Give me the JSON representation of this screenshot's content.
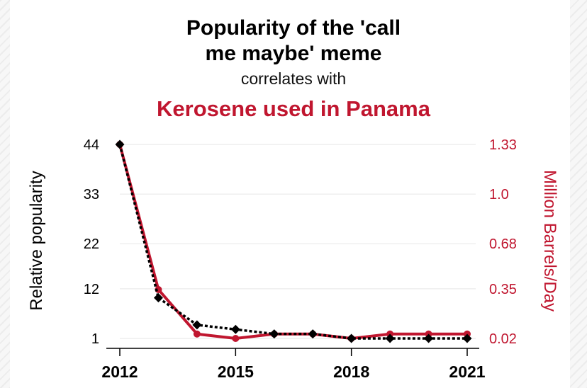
{
  "header": {
    "title_line1": "Popularity of the 'call",
    "title_line2": "me maybe' meme",
    "subtitle": "correlates with",
    "title2": "Kerosene used in Panama"
  },
  "colors": {
    "series1": "#000000",
    "series2": "#c0162f",
    "grid": "#e6e6e6"
  },
  "chart_data": {
    "type": "line",
    "x": [
      2012,
      2013,
      2014,
      2015,
      2016,
      2017,
      2018,
      2019,
      2020,
      2021
    ],
    "xticks": [
      "2012",
      "2015",
      "2018",
      "2021"
    ],
    "ylabel_left": "Relative popularity",
    "ylabel_right": "Million Barrels/Day",
    "yticks_left": [
      "44",
      "33",
      "22",
      "12",
      "1"
    ],
    "yticks_right": [
      "1.33",
      "1.0",
      "0.68",
      "0.35",
      "0.02"
    ],
    "ylim_left": [
      1,
      44
    ],
    "ylim_right": [
      0.02,
      1.33
    ],
    "grid": true,
    "series": [
      {
        "axis": "left",
        "color": "#000000",
        "style": "dotted",
        "marker": "diamond",
        "values": [
          44,
          10,
          4,
          3,
          2,
          2,
          1,
          1,
          1,
          1
        ]
      },
      {
        "axis": "right",
        "color": "#c0162f",
        "style": "solid",
        "marker": "circle",
        "values": [
          1.33,
          0.35,
          0.05,
          0.02,
          0.05,
          0.05,
          0.02,
          0.05,
          0.05,
          0.05
        ]
      }
    ]
  }
}
